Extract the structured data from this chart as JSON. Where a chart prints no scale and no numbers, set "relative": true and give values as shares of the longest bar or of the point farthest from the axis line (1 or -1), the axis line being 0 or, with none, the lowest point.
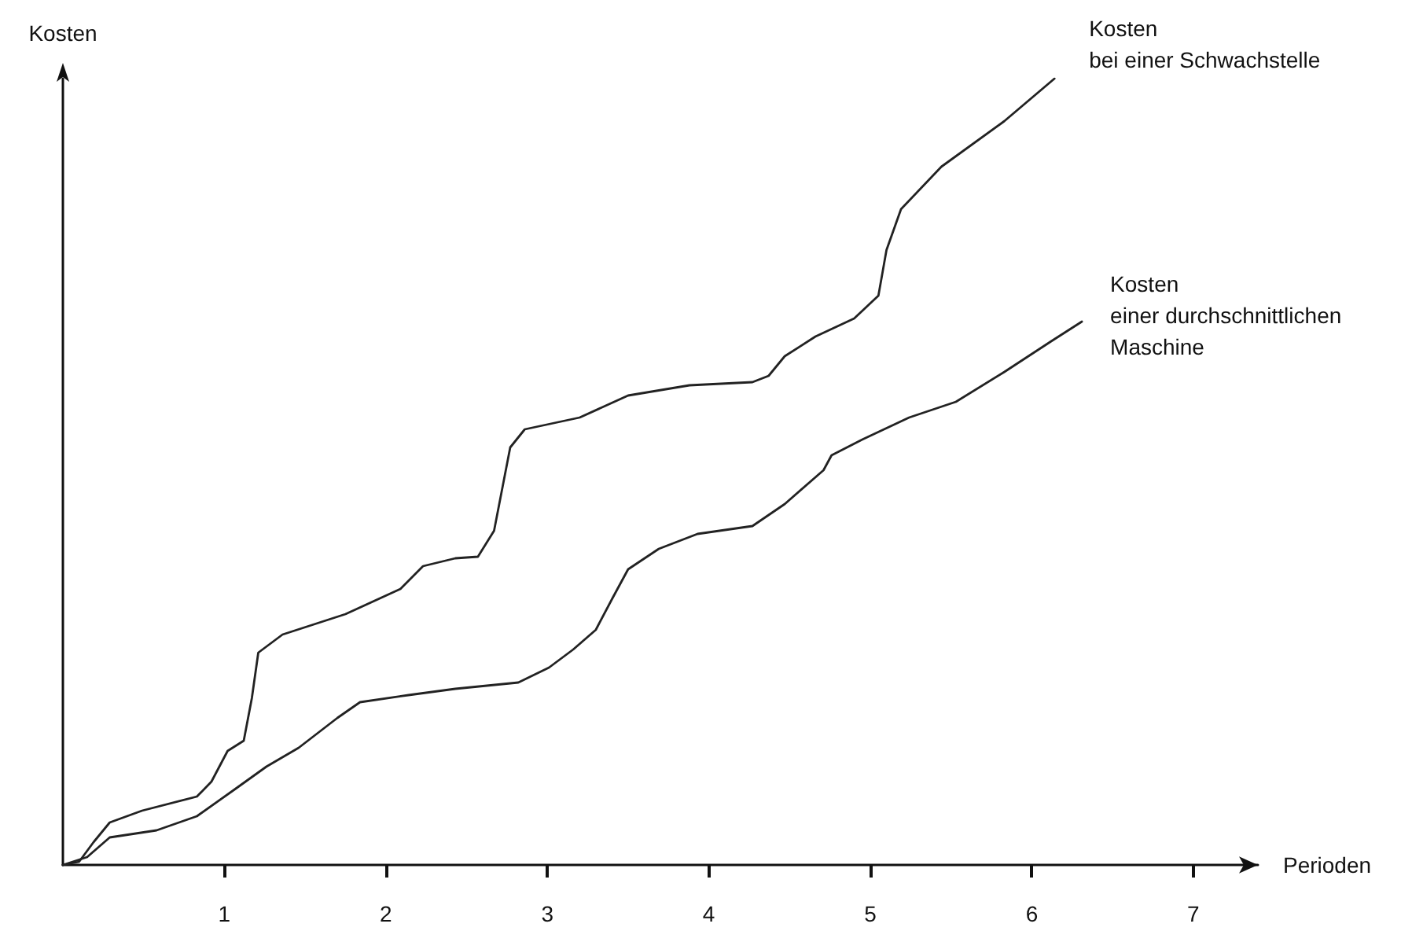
{
  "chart_data": {
    "type": "line",
    "relative": true,
    "xlabel": "Perioden",
    "ylabel": "Kosten",
    "xlim": [
      0,
      7.4
    ],
    "xticks": [
      1,
      2,
      3,
      4,
      5,
      6,
      7
    ],
    "grid": false,
    "legend": false,
    "marker": "none",
    "line_style": "solid",
    "series": [
      {
        "name": "Kosten\nbei einer Schwachstelle",
        "color": "#222222",
        "x": [
          0,
          0.1,
          0.19,
          0.29,
          0.49,
          0.83,
          0.92,
          1.02,
          1.12,
          1.17,
          1.21,
          1.36,
          1.75,
          2.09,
          2.23,
          2.43,
          2.57,
          2.67,
          2.77,
          2.86,
          3.2,
          3.5,
          3.88,
          4.27,
          4.37,
          4.47,
          4.66,
          4.9,
          5.05,
          5.1,
          5.19,
          5.44,
          5.83,
          6.14
        ],
        "values": [
          0,
          0.004,
          0.029,
          0.054,
          0.069,
          0.087,
          0.106,
          0.145,
          0.158,
          0.212,
          0.27,
          0.293,
          0.319,
          0.351,
          0.38,
          0.39,
          0.392,
          0.425,
          0.531,
          0.554,
          0.569,
          0.597,
          0.61,
          0.614,
          0.622,
          0.647,
          0.672,
          0.695,
          0.724,
          0.782,
          0.834,
          0.888,
          0.946,
          1
        ]
      },
      {
        "name": "Kosten\neiner durchschnittlichen\nMaschine",
        "color": "#222222",
        "x": [
          0,
          0.15,
          0.29,
          0.58,
          0.83,
          1.07,
          1.26,
          1.46,
          1.7,
          1.84,
          2.14,
          2.43,
          2.82,
          3.01,
          3.16,
          3.3,
          3.4,
          3.5,
          3.69,
          3.93,
          4.27,
          4.47,
          4.71,
          4.76,
          4.95,
          5.24,
          5.53,
          5.83,
          6.12,
          6.31
        ],
        "values": [
          0,
          0.01,
          0.035,
          0.044,
          0.062,
          0.097,
          0.125,
          0.149,
          0.187,
          0.207,
          0.216,
          0.224,
          0.232,
          0.251,
          0.274,
          0.299,
          0.338,
          0.376,
          0.402,
          0.421,
          0.431,
          0.459,
          0.502,
          0.521,
          0.541,
          0.569,
          0.589,
          0.627,
          0.666,
          0.691
        ]
      }
    ]
  }
}
